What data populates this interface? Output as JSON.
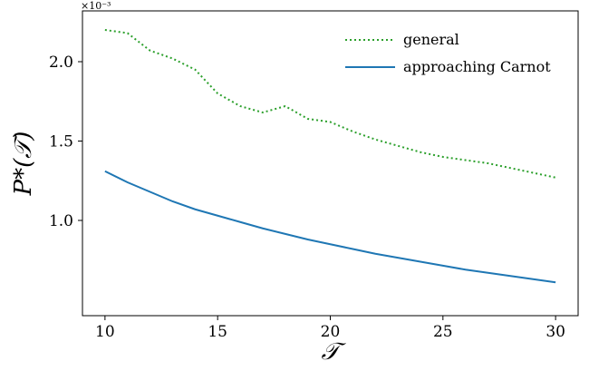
{
  "chart_data": {
    "type": "line",
    "xlabel": "𝒯",
    "ylabel": "P*(𝒯)",
    "y_offset_text": "×10⁻³",
    "xlim": [
      9.0,
      31.0
    ],
    "ylim": [
      0.0004,
      0.00232
    ],
    "x_ticks": [
      10,
      15,
      20,
      25,
      30
    ],
    "x_tick_labels": [
      "10",
      "15",
      "20",
      "25",
      "30"
    ],
    "y_ticks": [
      0.001,
      0.0015,
      0.002
    ],
    "y_tick_labels": [
      "1.0",
      "1.5",
      "2.0"
    ],
    "grid": false,
    "legend_position": "top-right",
    "series": [
      {
        "name": "general",
        "color": "#2ca02c",
        "style": "dotted",
        "x": [
          10,
          11,
          12,
          13,
          14,
          15,
          16,
          17,
          18,
          19,
          20,
          21,
          22,
          23,
          24,
          25,
          26,
          27,
          28,
          29,
          30
        ],
        "values": [
          0.0022,
          0.00218,
          0.00207,
          0.00202,
          0.00195,
          0.0018,
          0.00172,
          0.00168,
          0.00172,
          0.00164,
          0.00162,
          0.00156,
          0.00151,
          0.00147,
          0.00143,
          0.0014,
          0.00138,
          0.00136,
          0.00133,
          0.0013,
          0.00127
        ]
      },
      {
        "name": "approaching Carnot",
        "color": "#1f77b4",
        "style": "solid",
        "x": [
          10,
          11,
          12,
          13,
          14,
          15,
          16,
          17,
          18,
          19,
          20,
          21,
          22,
          23,
          24,
          25,
          26,
          27,
          28,
          29,
          30
        ],
        "values": [
          0.00131,
          0.00124,
          0.00118,
          0.00112,
          0.00107,
          0.00103,
          0.00099,
          0.00095,
          0.000915,
          0.00088,
          0.00085,
          0.00082,
          0.00079,
          0.000765,
          0.00074,
          0.000715,
          0.00069,
          0.00067,
          0.00065,
          0.00063,
          0.00061
        ]
      }
    ]
  }
}
